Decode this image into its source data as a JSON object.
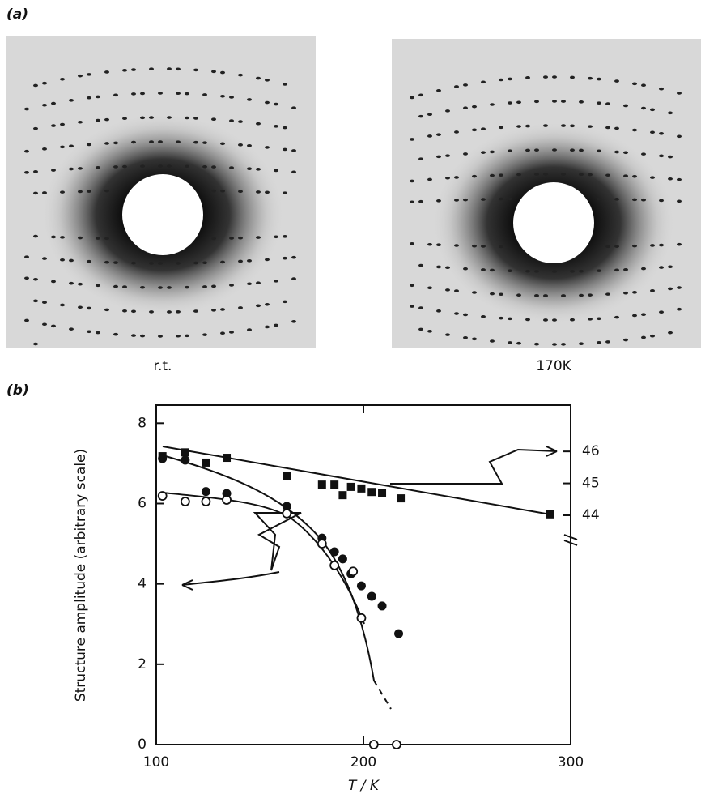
{
  "panel_a_label": "(a)",
  "image_labels": [
    "r.t.",
    "170K"
  ],
  "chart_data": {
    "type": "scatter",
    "panel_label": "(b)",
    "x_label": "T / K",
    "y_label": "Structure amplitude (arbitrary scale)",
    "xlim": [
      100,
      300
    ],
    "xticks": [
      100,
      200,
      300
    ],
    "ylim": [
      0,
      8.45
    ],
    "yticks": [
      0,
      2,
      4,
      6,
      8
    ],
    "y2lim": [
      36.82,
      47.45
    ],
    "y2ticks": [
      44,
      45,
      46
    ],
    "series": [
      {
        "marker": "square",
        "color": "#111111",
        "axis": "y2",
        "x": [
          103,
          114,
          124,
          134,
          163,
          180,
          186,
          190,
          194,
          199,
          204,
          209,
          218,
          290
        ],
        "values": [
          45.85,
          45.97,
          45.65,
          45.8,
          45.22,
          44.96,
          44.96,
          44.63,
          44.89,
          44.84,
          44.73,
          44.71,
          44.53,
          44.03
        ]
      },
      {
        "marker": "filled-circle",
        "color": "#111111",
        "x": [
          103,
          114,
          124,
          134,
          163,
          180,
          186,
          190,
          194,
          199,
          204,
          209,
          217
        ],
        "values": [
          7.12,
          7.08,
          6.3,
          6.25,
          5.93,
          5.14,
          4.8,
          4.62,
          4.25,
          3.95,
          3.69,
          3.45,
          2.76
        ]
      },
      {
        "marker": "open-circle",
        "color": "#111111",
        "x": [
          103,
          114,
          124,
          134,
          163,
          180,
          186,
          195,
          199,
          205,
          216
        ],
        "values": [
          6.19,
          6.05,
          6.05,
          6.09,
          5.75,
          5.0,
          4.46,
          4.31,
          3.15,
          0,
          0
        ]
      }
    ]
  }
}
